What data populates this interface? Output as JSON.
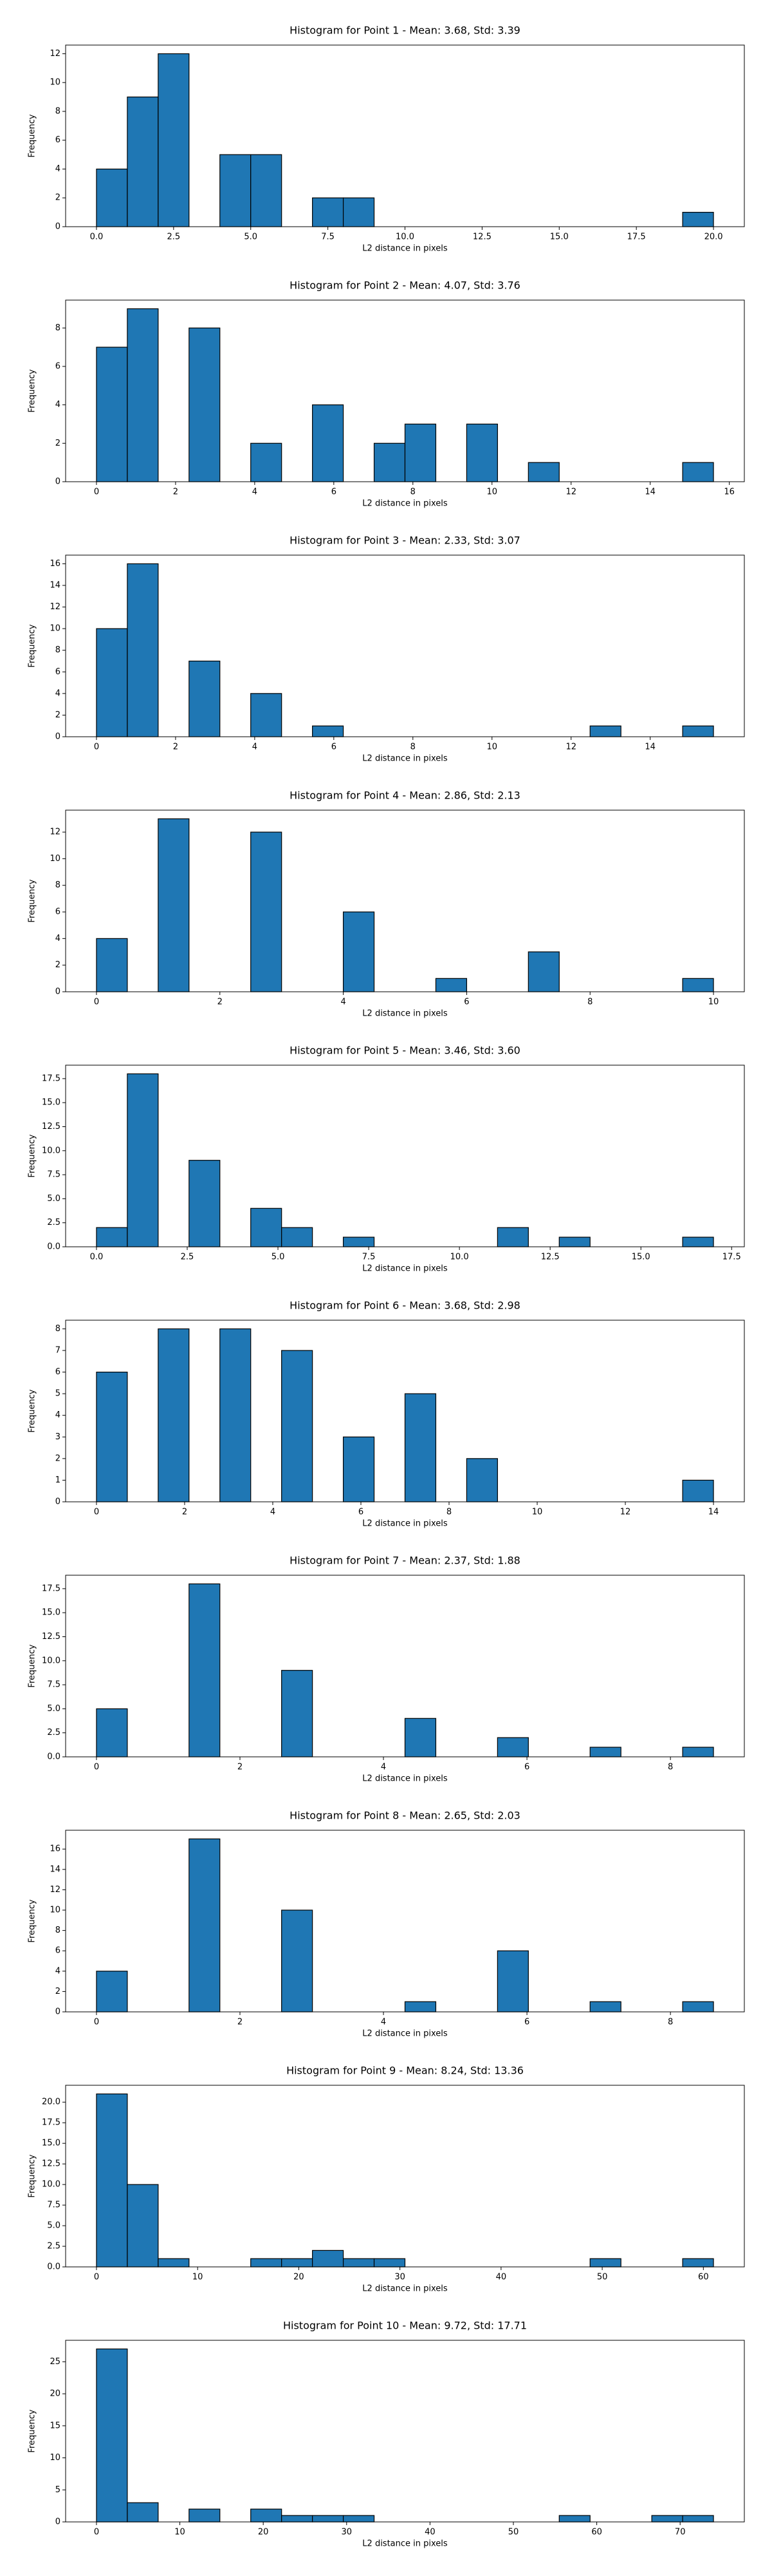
{
  "chart_data": [
    {
      "type": "histogram",
      "title": "Histogram for Point 1 - Mean: 3.68, Std: 3.39",
      "x_label": "L2 distance in pixels",
      "y_label": "Frequency",
      "color": "#1f77b4",
      "edgecolor": "#000000",
      "bins": [
        0,
        1,
        2,
        3,
        4,
        5,
        6,
        7,
        8,
        9,
        10,
        11,
        12,
        13,
        14,
        15,
        16,
        17,
        18,
        19,
        20
      ],
      "counts": [
        4,
        9,
        12,
        0,
        5,
        5,
        0,
        2,
        2,
        0,
        0,
        0,
        0,
        0,
        0,
        0,
        0,
        0,
        0,
        1
      ],
      "xlim": [
        -1,
        21
      ],
      "xticks": [
        {
          "value": 0,
          "label": "0.0"
        },
        2.5,
        {
          "value": 5,
          "label": "5.0"
        },
        7.5,
        {
          "value": 10,
          "label": "10.0"
        },
        12.5,
        {
          "value": 15,
          "label": "15.0"
        },
        17.5,
        {
          "value": 20,
          "label": "20.0"
        }
      ],
      "ylim": [
        0,
        12.6
      ],
      "yticks": [
        0,
        2,
        4,
        6,
        8,
        10,
        12
      ]
    },
    {
      "type": "histogram",
      "title": "Histogram for Point 2 - Mean: 4.07, Std: 3.76",
      "x_label": "L2 distance in pixels",
      "y_label": "Frequency",
      "color": "#1f77b4",
      "edgecolor": "#000000",
      "bins": [
        0,
        0.78,
        1.56,
        2.34,
        3.12,
        3.9,
        4.68,
        5.46,
        6.24,
        7.02,
        7.8,
        8.58,
        9.36,
        10.14,
        10.92,
        11.7,
        12.48,
        13.26,
        14.04,
        14.82,
        15.6
      ],
      "counts": [
        7,
        9,
        0,
        8,
        0,
        2,
        0,
        4,
        0,
        2,
        3,
        0,
        3,
        0,
        1,
        0,
        0,
        0,
        0,
        1
      ],
      "xlim": [
        -0.78,
        16.38
      ],
      "xticks": [
        0,
        2,
        4,
        6,
        8,
        10,
        12,
        14,
        16
      ],
      "ylim": [
        0,
        9.45
      ],
      "yticks": [
        0,
        2,
        4,
        6,
        8
      ]
    },
    {
      "type": "histogram",
      "title": "Histogram for Point 3 - Mean: 2.33, Std: 3.07",
      "x_label": "L2 distance in pixels",
      "y_label": "Frequency",
      "color": "#1f77b4",
      "edgecolor": "#000000",
      "bins": [
        0,
        0.78,
        1.56,
        2.34,
        3.12,
        3.9,
        4.68,
        5.46,
        6.24,
        7.02,
        7.8,
        8.58,
        9.36,
        10.14,
        10.92,
        11.7,
        12.48,
        13.26,
        14.04,
        14.82,
        15.6
      ],
      "counts": [
        10,
        16,
        0,
        7,
        0,
        4,
        0,
        1,
        0,
        0,
        0,
        0,
        0,
        0,
        0,
        0,
        1,
        0,
        0,
        1
      ],
      "xlim": [
        -0.78,
        16.38
      ],
      "xticks": [
        0,
        2,
        4,
        6,
        8,
        10,
        12,
        14
      ],
      "ylim": [
        0,
        16.8
      ],
      "yticks": [
        0,
        2,
        4,
        6,
        8,
        10,
        12,
        14,
        16
      ]
    },
    {
      "type": "histogram",
      "title": "Histogram for Point 4 - Mean: 2.86, Std: 2.13",
      "x_label": "L2 distance in pixels",
      "y_label": "Frequency",
      "color": "#1f77b4",
      "edgecolor": "#000000",
      "bins": [
        0,
        0.5,
        1,
        1.5,
        2,
        2.5,
        3,
        3.5,
        4,
        4.5,
        5,
        5.5,
        6,
        6.5,
        7,
        7.5,
        8,
        8.5,
        9,
        9.5,
        10
      ],
      "counts": [
        4,
        0,
        13,
        0,
        0,
        12,
        0,
        0,
        6,
        0,
        0,
        1,
        0,
        0,
        3,
        0,
        0,
        0,
        0,
        1
      ],
      "xlim": [
        -0.5,
        10.5
      ],
      "xticks": [
        0,
        2,
        4,
        6,
        8,
        10
      ],
      "ylim": [
        0,
        13.65
      ],
      "yticks": [
        0,
        2,
        4,
        6,
        8,
        10,
        12
      ]
    },
    {
      "type": "histogram",
      "title": "Histogram for Point 5 - Mean: 3.46, Std: 3.60",
      "x_label": "L2 distance in pixels",
      "y_label": "Frequency",
      "color": "#1f77b4",
      "edgecolor": "#000000",
      "bins": [
        0,
        0.85,
        1.7,
        2.55,
        3.4,
        4.25,
        5.1,
        5.95,
        6.8,
        7.65,
        8.5,
        9.35,
        10.2,
        11.05,
        11.9,
        12.75,
        13.6,
        14.45,
        15.3,
        16.15,
        17
      ],
      "counts": [
        2,
        18,
        0,
        9,
        0,
        4,
        2,
        0,
        1,
        0,
        0,
        0,
        0,
        2,
        0,
        1,
        0,
        0,
        0,
        1
      ],
      "xlim": [
        -0.85,
        17.85
      ],
      "xticks": [
        {
          "value": 0,
          "label": "0.0"
        },
        2.5,
        {
          "value": 5,
          "label": "5.0"
        },
        7.5,
        {
          "value": 10,
          "label": "10.0"
        },
        12.5,
        {
          "value": 15,
          "label": "15.0"
        },
        17.5
      ],
      "ylim": [
        0,
        18.9
      ],
      "yticks": [
        {
          "value": 0,
          "label": "0.0"
        },
        2.5,
        {
          "value": 5,
          "label": "5.0"
        },
        7.5,
        {
          "value": 10,
          "label": "10.0"
        },
        12.5,
        {
          "value": 15,
          "label": "15.0"
        },
        17.5
      ]
    },
    {
      "type": "histogram",
      "title": "Histogram for Point 6 - Mean: 3.68, Std: 2.98",
      "x_label": "L2 distance in pixels",
      "y_label": "Frequency",
      "color": "#1f77b4",
      "edgecolor": "#000000",
      "bins": [
        0,
        0.7,
        1.4,
        2.1,
        2.8,
        3.5,
        4.2,
        4.9,
        5.6,
        6.3,
        7,
        7.7,
        8.4,
        9.1,
        9.8,
        10.5,
        11.2,
        11.9,
        12.6,
        13.3,
        14
      ],
      "counts": [
        6,
        0,
        8,
        0,
        8,
        0,
        7,
        0,
        3,
        0,
        5,
        0,
        2,
        0,
        0,
        0,
        0,
        0,
        0,
        1
      ],
      "xlim": [
        -0.7,
        14.7
      ],
      "xticks": [
        0,
        2,
        4,
        6,
        8,
        10,
        12,
        14
      ],
      "ylim": [
        0,
        8.4
      ],
      "yticks": [
        0,
        1,
        2,
        3,
        4,
        5,
        6,
        7,
        8
      ]
    },
    {
      "type": "histogram",
      "title": "Histogram for Point 7 - Mean: 2.37, Std: 1.88",
      "x_label": "L2 distance in pixels",
      "y_label": "Frequency",
      "color": "#1f77b4",
      "edgecolor": "#000000",
      "bins": [
        0,
        0.43,
        0.86,
        1.29,
        1.72,
        2.15,
        2.58,
        3.01,
        3.44,
        3.87,
        4.3,
        4.73,
        5.16,
        5.59,
        6.02,
        6.45,
        6.88,
        7.31,
        7.74,
        8.17,
        8.6
      ],
      "counts": [
        5,
        0,
        0,
        18,
        0,
        0,
        9,
        0,
        0,
        0,
        4,
        0,
        0,
        2,
        0,
        0,
        1,
        0,
        0,
        1
      ],
      "xlim": [
        -0.43,
        9.03
      ],
      "xticks": [
        0,
        2,
        4,
        6,
        8
      ],
      "ylim": [
        0,
        18.9
      ],
      "yticks": [
        {
          "value": 0,
          "label": "0.0"
        },
        2.5,
        {
          "value": 5,
          "label": "5.0"
        },
        7.5,
        {
          "value": 10,
          "label": "10.0"
        },
        12.5,
        {
          "value": 15,
          "label": "15.0"
        },
        17.5
      ]
    },
    {
      "type": "histogram",
      "title": "Histogram for Point 8 - Mean: 2.65, Std: 2.03",
      "x_label": "L2 distance in pixels",
      "y_label": "Frequency",
      "color": "#1f77b4",
      "edgecolor": "#000000",
      "bins": [
        0,
        0.43,
        0.86,
        1.29,
        1.72,
        2.15,
        2.58,
        3.01,
        3.44,
        3.87,
        4.3,
        4.73,
        5.16,
        5.59,
        6.02,
        6.45,
        6.88,
        7.31,
        7.74,
        8.17,
        8.6
      ],
      "counts": [
        4,
        0,
        0,
        17,
        0,
        0,
        10,
        0,
        0,
        0,
        1,
        0,
        0,
        6,
        0,
        0,
        1,
        0,
        0,
        1
      ],
      "xlim": [
        -0.43,
        9.03
      ],
      "xticks": [
        0,
        2,
        4,
        6,
        8
      ],
      "ylim": [
        0,
        17.85
      ],
      "yticks": [
        0,
        2,
        4,
        6,
        8,
        10,
        12,
        14,
        16
      ]
    },
    {
      "type": "histogram",
      "title": "Histogram for Point 9 - Mean: 8.24, Std: 13.36",
      "x_label": "L2 distance in pixels",
      "y_label": "Frequency",
      "color": "#1f77b4",
      "edgecolor": "#000000",
      "bins": [
        0,
        3.05,
        6.1,
        9.15,
        12.2,
        15.25,
        18.3,
        21.35,
        24.4,
        27.45,
        30.5,
        33.55,
        36.6,
        39.65,
        42.7,
        45.75,
        48.8,
        51.85,
        54.9,
        57.95,
        61
      ],
      "counts": [
        21,
        10,
        1,
        0,
        0,
        1,
        1,
        2,
        1,
        1,
        0,
        0,
        0,
        0,
        0,
        0,
        1,
        0,
        0,
        1
      ],
      "xlim": [
        -3.05,
        64.05
      ],
      "xticks": [
        0,
        10,
        20,
        30,
        40,
        50,
        60
      ],
      "ylim": [
        0,
        22.05
      ],
      "yticks": [
        {
          "value": 0,
          "label": "0.0"
        },
        2.5,
        {
          "value": 5,
          "label": "5.0"
        },
        7.5,
        {
          "value": 10,
          "label": "10.0"
        },
        12.5,
        {
          "value": 15,
          "label": "15.0"
        },
        17.5,
        {
          "value": 20,
          "label": "20.0"
        }
      ]
    },
    {
      "type": "histogram",
      "title": "Histogram for Point 10 - Mean: 9.72, Std: 17.71",
      "x_label": "L2 distance in pixels",
      "y_label": "Frequency",
      "color": "#1f77b4",
      "edgecolor": "#000000",
      "bins": [
        0,
        3.7,
        7.4,
        11.1,
        14.8,
        18.5,
        22.2,
        25.9,
        29.6,
        33.3,
        37,
        40.7,
        44.4,
        48.1,
        51.8,
        55.5,
        59.2,
        62.9,
        66.6,
        70.3,
        74
      ],
      "counts": [
        27,
        3,
        0,
        2,
        0,
        2,
        1,
        1,
        1,
        0,
        0,
        0,
        0,
        0,
        0,
        1,
        0,
        0,
        1,
        1
      ],
      "xlim": [
        -3.7,
        77.7
      ],
      "xticks": [
        0,
        10,
        20,
        30,
        40,
        50,
        60,
        70
      ],
      "ylim": [
        0,
        28.35
      ],
      "yticks": [
        0,
        5,
        10,
        15,
        20,
        25
      ]
    }
  ]
}
